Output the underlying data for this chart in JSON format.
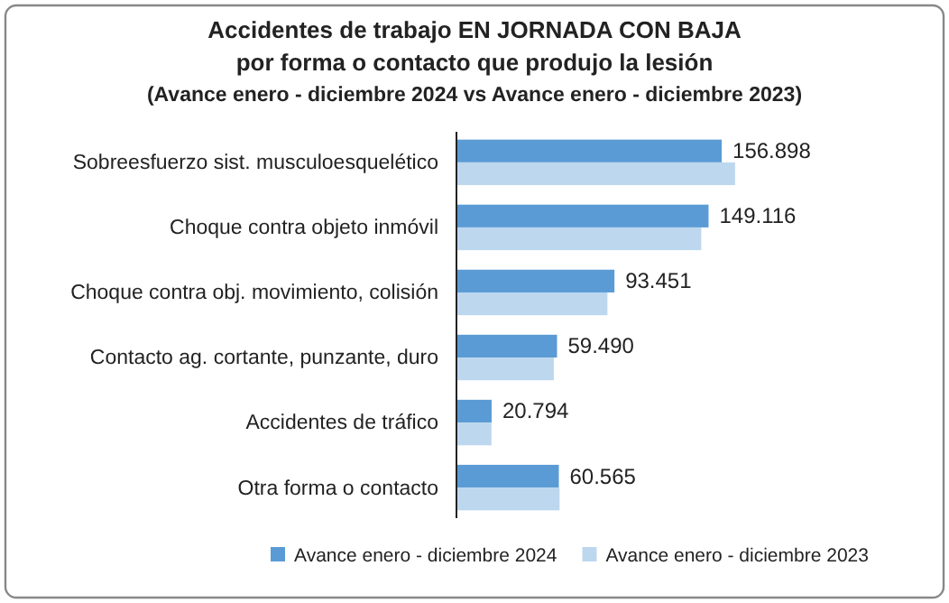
{
  "chart_data": {
    "type": "bar",
    "orientation": "horizontal",
    "title": "Accidentes de trabajo EN JORNADA CON BAJA",
    "subtitle": [
      "por forma o contacto que produjo la lesión",
      "(Avance enero - diciembre 2024 vs Avance enero - diciembre 2023)"
    ],
    "categories": [
      "Sobreesfuerzo sist. musculoesquelético",
      "Choque contra objeto inmóvil",
      "Choque contra obj. movimiento, colisión",
      "Contacto ag. cortante, punzante, duro",
      "Accidentes de tráfico",
      "Otra forma o contacto"
    ],
    "series": [
      {
        "name": "Avance enero - diciembre 2024",
        "color": "#5b9bd5",
        "values": [
          156.898,
          149.116,
          93.451,
          59.49,
          20.794,
          60.565
        ],
        "value_labels": [
          "156.898",
          "149.116",
          "93.451",
          "59.490",
          "20.794",
          "60.565"
        ]
      },
      {
        "name": "Avance enero - diciembre 2023",
        "color": "#bdd7ee",
        "values": [
          164.8,
          144.8,
          89.3,
          57.6,
          20.7,
          61
        ]
      }
    ],
    "legend": "bottom",
    "grid": false
  }
}
